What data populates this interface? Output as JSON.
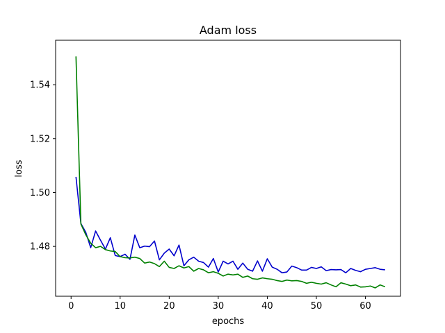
{
  "chart_data": {
    "type": "line",
    "title": "Adam loss",
    "xlabel": "epochs",
    "ylabel": "loss",
    "xlim": [
      -3.15,
      67.15
    ],
    "ylim": [
      1.4615,
      1.5565
    ],
    "xticks": [
      0,
      10,
      20,
      30,
      40,
      50,
      60
    ],
    "yticks": [
      1.48,
      1.5,
      1.52,
      1.54
    ],
    "ytick_labels": [
      "1.48",
      "1.50",
      "1.52",
      "1.54"
    ],
    "grid": false,
    "legend": "none",
    "x": [
      1,
      2,
      3,
      4,
      5,
      6,
      7,
      8,
      9,
      10,
      11,
      12,
      13,
      14,
      15,
      16,
      17,
      18,
      19,
      20,
      21,
      22,
      23,
      24,
      25,
      26,
      27,
      28,
      29,
      30,
      31,
      32,
      33,
      34,
      35,
      36,
      37,
      38,
      39,
      40,
      41,
      42,
      43,
      44,
      45,
      46,
      47,
      48,
      49,
      50,
      51,
      52,
      53,
      54,
      55,
      56,
      57,
      58,
      59,
      60,
      61,
      62,
      63,
      64
    ],
    "series": [
      {
        "color": "#0000cc",
        "values": [
          1.5058,
          1.4885,
          1.4852,
          1.4795,
          1.4857,
          1.4823,
          1.479,
          1.4832,
          1.4766,
          1.4762,
          1.4771,
          1.4752,
          1.4842,
          1.4795,
          1.4801,
          1.4799,
          1.482,
          1.475,
          1.4775,
          1.479,
          1.4765,
          1.4805,
          1.4728,
          1.475,
          1.476,
          1.4745,
          1.474,
          1.4723,
          1.4755,
          1.4705,
          1.4745,
          1.4735,
          1.4745,
          1.4715,
          1.4738,
          1.4715,
          1.4708,
          1.4746,
          1.4708,
          1.4754,
          1.4723,
          1.4715,
          1.4702,
          1.4705,
          1.4727,
          1.4721,
          1.4712,
          1.4712,
          1.4722,
          1.4718,
          1.4724,
          1.471,
          1.4714,
          1.4713,
          1.4714,
          1.4702,
          1.4718,
          1.4711,
          1.4706,
          1.4715,
          1.4718,
          1.4721,
          1.4715,
          1.4713
        ]
      },
      {
        "color": "#008000",
        "values": [
          1.5505,
          1.4883,
          1.4843,
          1.4812,
          1.4795,
          1.48,
          1.4788,
          1.4783,
          1.4781,
          1.4762,
          1.4758,
          1.4757,
          1.476,
          1.4755,
          1.4738,
          1.4742,
          1.4736,
          1.4725,
          1.4745,
          1.4722,
          1.4718,
          1.4728,
          1.472,
          1.4725,
          1.4708,
          1.4718,
          1.4713,
          1.4702,
          1.4706,
          1.47,
          1.469,
          1.4697,
          1.4694,
          1.4697,
          1.4685,
          1.469,
          1.468,
          1.4678,
          1.4683,
          1.468,
          1.4678,
          1.4673,
          1.467,
          1.4675,
          1.4672,
          1.4673,
          1.467,
          1.4663,
          1.4667,
          1.4663,
          1.466,
          1.4665,
          1.4657,
          1.465,
          1.4665,
          1.466,
          1.4654,
          1.4657,
          1.4649,
          1.465,
          1.4653,
          1.4646,
          1.4657,
          1.465
        ]
      }
    ]
  }
}
